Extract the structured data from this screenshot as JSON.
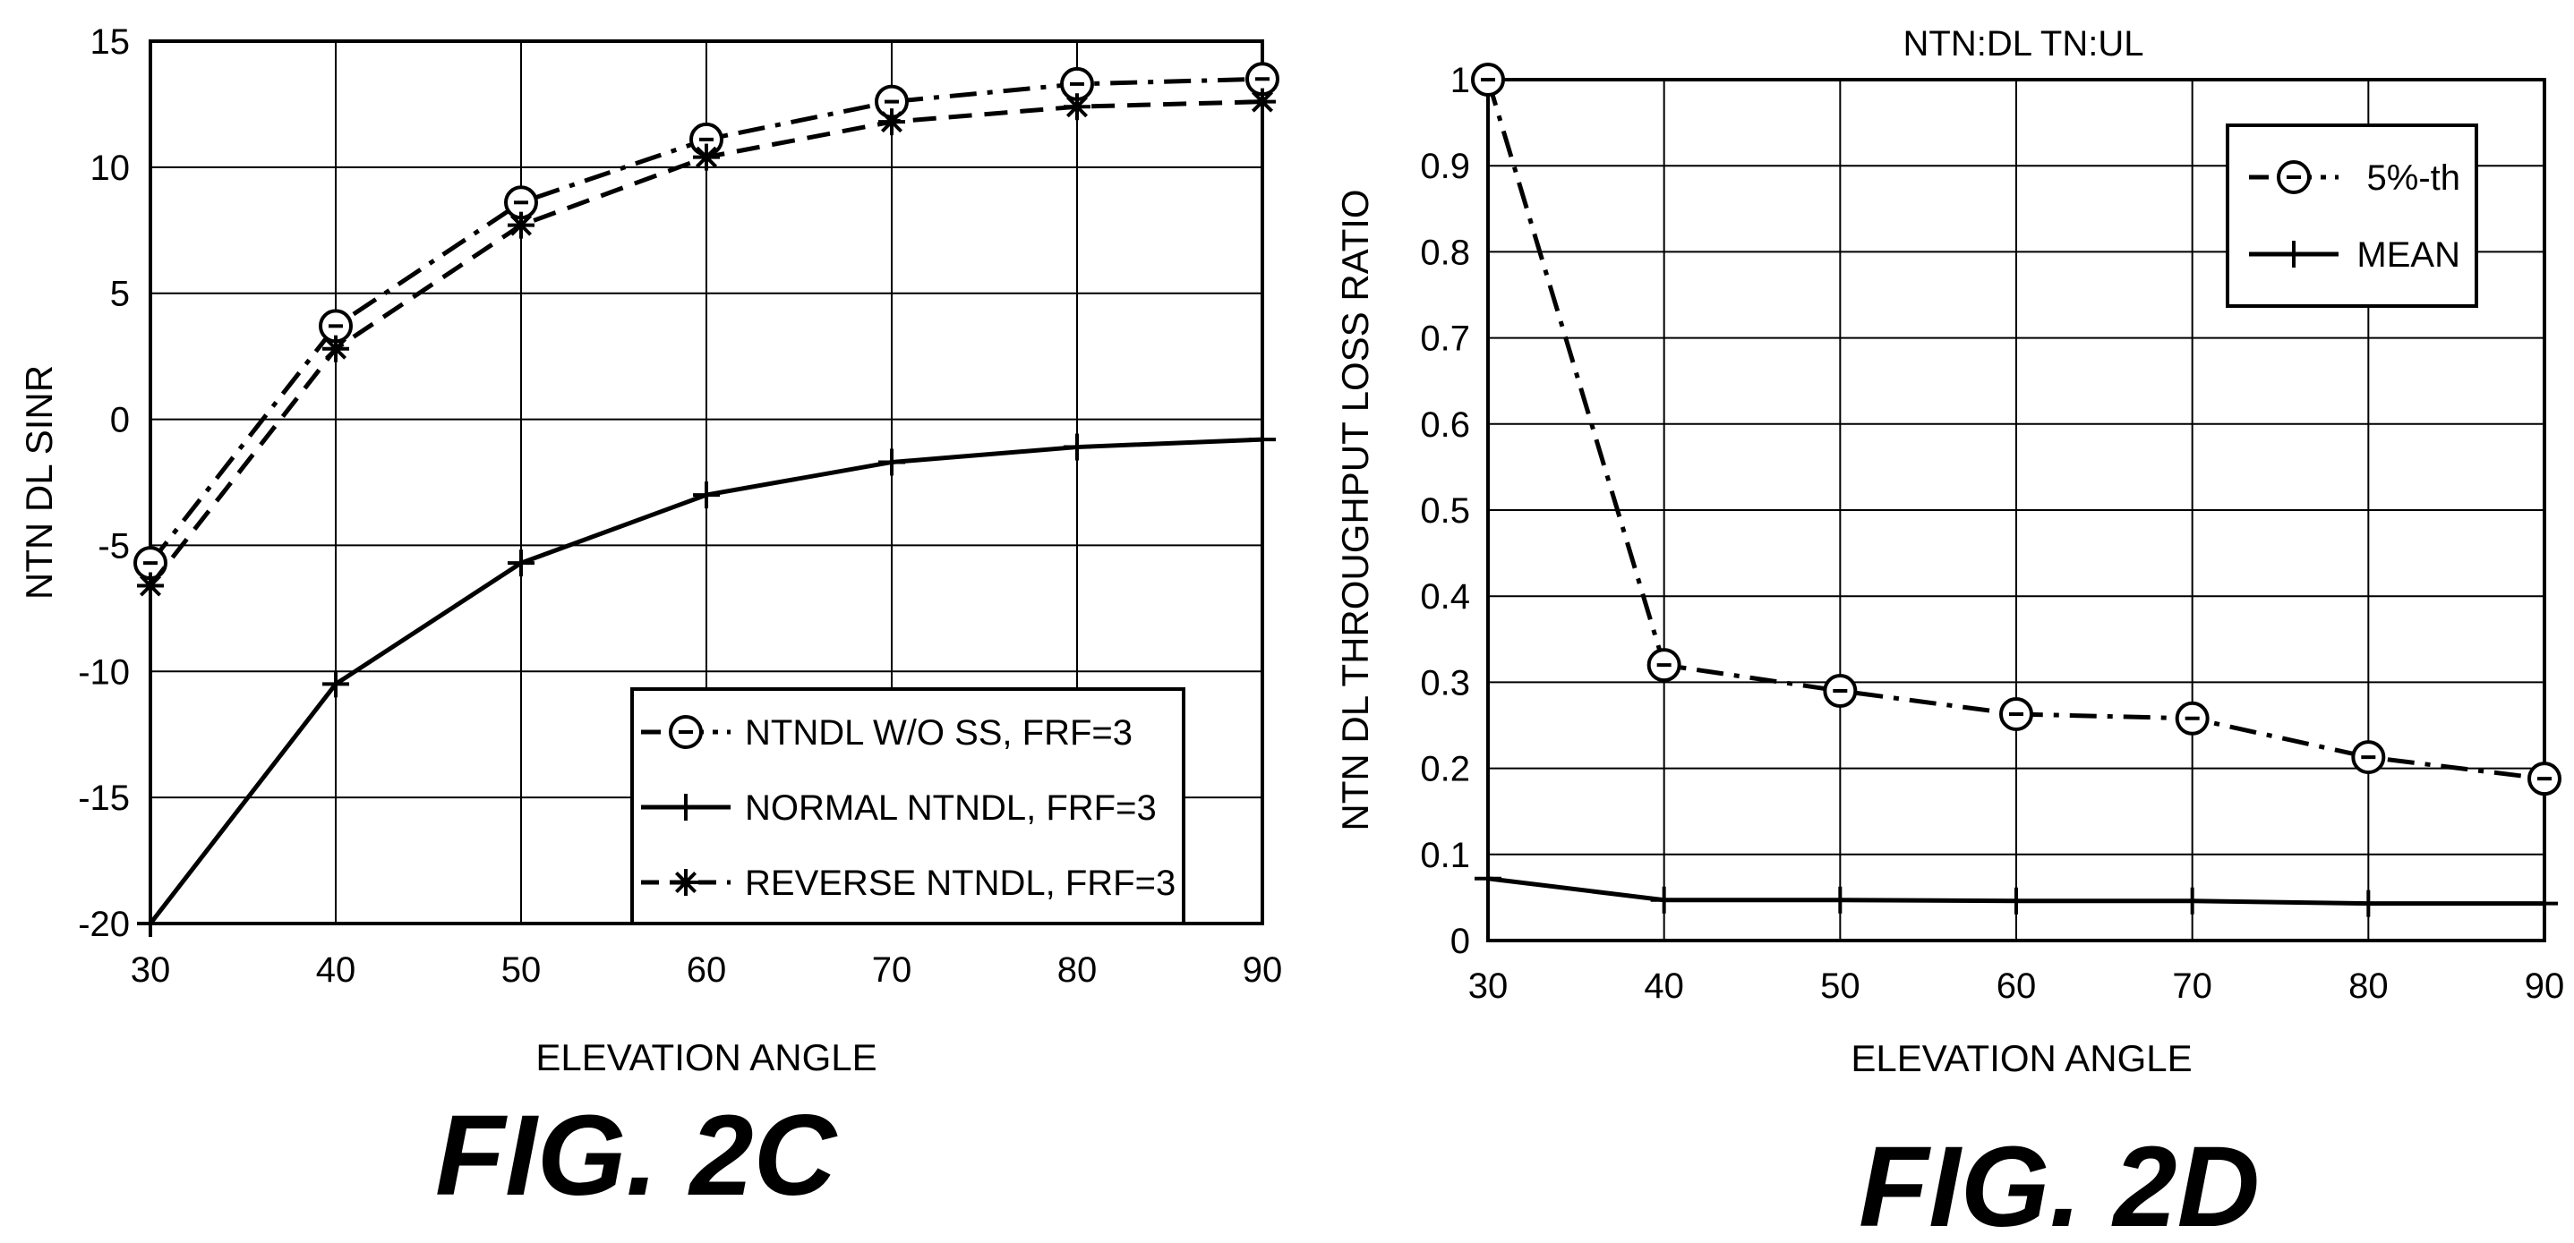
{
  "chart_data": [
    {
      "type": "line",
      "title": "",
      "xlabel": "ELEVATION ANGLE",
      "ylabel": "NTN DL SINR",
      "xlim": [
        30,
        90
      ],
      "ylim": [
        -20,
        15
      ],
      "xticks": [
        30,
        40,
        50,
        60,
        70,
        80,
        90
      ],
      "yticks": [
        -20,
        -15,
        -10,
        -5,
        0,
        5,
        10,
        15
      ],
      "grid": true,
      "legend_position": "bottom-right",
      "x": [
        30,
        40,
        50,
        60,
        70,
        80,
        90
      ],
      "series": [
        {
          "name": "NTNDL W/O SS, FRF=3",
          "style": "dashdot",
          "marker": "circle",
          "values": [
            -5.7,
            3.7,
            8.6,
            11.1,
            12.6,
            13.3,
            13.5
          ]
        },
        {
          "name": "NORMAL NTNDL, FRF=3",
          "style": "solid",
          "marker": "plus",
          "values": [
            -20,
            -10.5,
            -5.7,
            -3.0,
            -1.7,
            -1.1,
            -0.8
          ]
        },
        {
          "name": "REVERSE NTNDL, FRF=3",
          "style": "dashed",
          "marker": "star",
          "values": [
            -6.6,
            2.8,
            7.7,
            10.4,
            11.8,
            12.4,
            12.6
          ]
        }
      ],
      "caption": "FIG. 2C"
    },
    {
      "type": "line",
      "title": "NTN:DL  TN:UL",
      "xlabel": "ELEVATION ANGLE",
      "ylabel": "NTN DL THROUGHPUT LOSS RATIO",
      "xlim": [
        30,
        90
      ],
      "ylim": [
        0,
        1
      ],
      "xticks": [
        30,
        40,
        50,
        60,
        70,
        80,
        90
      ],
      "yticks": [
        0,
        0.1,
        0.2,
        0.3,
        0.4,
        0.5,
        0.6,
        0.7,
        0.8,
        0.9,
        1
      ],
      "grid": true,
      "legend_position": "top-right",
      "x": [
        30,
        40,
        50,
        60,
        70,
        80,
        90
      ],
      "series": [
        {
          "name": "5%-th",
          "style": "dashdot",
          "marker": "circle",
          "values": [
            1.0,
            0.32,
            0.29,
            0.263,
            0.258,
            0.213,
            0.188
          ]
        },
        {
          "name": "MEAN",
          "style": "solid",
          "marker": "plus",
          "values": [
            0.072,
            0.047,
            0.047,
            0.046,
            0.046,
            0.043,
            0.043
          ]
        }
      ],
      "caption": "FIG. 2D"
    }
  ]
}
